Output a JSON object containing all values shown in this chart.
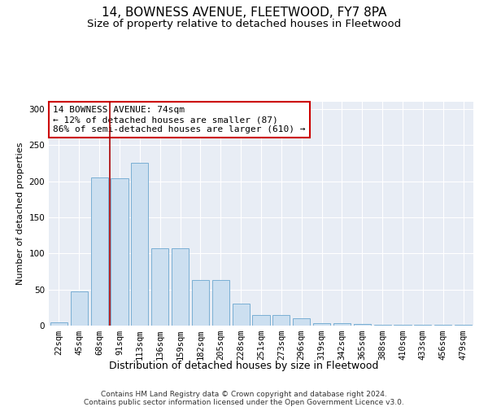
{
  "title": "14, BOWNESS AVENUE, FLEETWOOD, FY7 8PA",
  "subtitle": "Size of property relative to detached houses in Fleetwood",
  "xlabel": "Distribution of detached houses by size in Fleetwood",
  "ylabel": "Number of detached properties",
  "categories": [
    "22sqm",
    "45sqm",
    "68sqm",
    "91sqm",
    "113sqm",
    "136sqm",
    "159sqm",
    "182sqm",
    "205sqm",
    "228sqm",
    "251sqm",
    "273sqm",
    "296sqm",
    "319sqm",
    "342sqm",
    "365sqm",
    "388sqm",
    "410sqm",
    "433sqm",
    "456sqm",
    "479sqm"
  ],
  "values": [
    5,
    47,
    205,
    204,
    225,
    107,
    107,
    63,
    63,
    30,
    15,
    15,
    10,
    3,
    3,
    2,
    1,
    1,
    1,
    1,
    1
  ],
  "bar_color": "#ccdff0",
  "bar_edge_color": "#7aafd4",
  "background_color": "#e8edf5",
  "vline_color": "#aa0000",
  "vline_x_index": 2.5,
  "annotation_text": "14 BOWNESS AVENUE: 74sqm\n← 12% of detached houses are smaller (87)\n86% of semi-detached houses are larger (610) →",
  "annotation_box_color": "#ffffff",
  "annotation_box_edge": "#cc0000",
  "ylim": [
    0,
    310
  ],
  "yticks": [
    0,
    50,
    100,
    150,
    200,
    250,
    300
  ],
  "footer": "Contains HM Land Registry data © Crown copyright and database right 2024.\nContains public sector information licensed under the Open Government Licence v3.0.",
  "title_fontsize": 11,
  "subtitle_fontsize": 9.5,
  "xlabel_fontsize": 9,
  "ylabel_fontsize": 8,
  "tick_fontsize": 7.5,
  "annotation_fontsize": 8,
  "footer_fontsize": 6.5
}
